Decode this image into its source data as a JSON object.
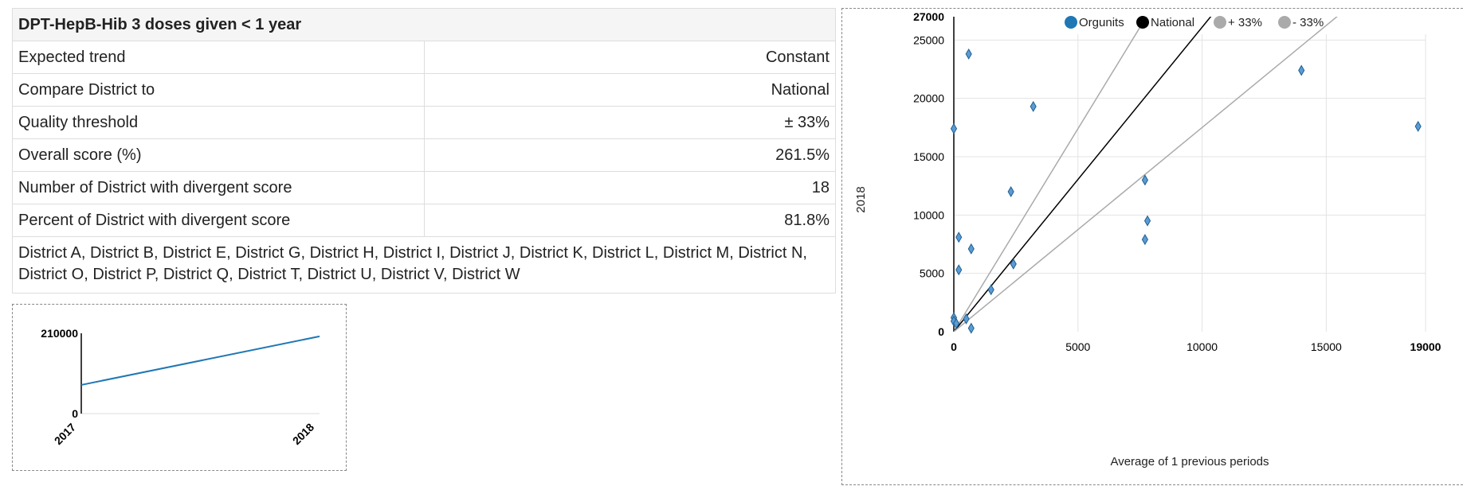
{
  "table": {
    "title": "DPT-HepB-Hib 3 doses given < 1 year",
    "rows": [
      {
        "label": "Expected trend",
        "value": "Constant"
      },
      {
        "label": "Compare District to",
        "value": "National"
      },
      {
        "label": "Quality threshold",
        "value": "± 33%"
      },
      {
        "label": "Overall score (%)",
        "value": "261.5%"
      },
      {
        "label": "Number of District with divergent score",
        "value": "18"
      },
      {
        "label": "Percent of District with divergent score",
        "value": "81.8%"
      }
    ],
    "divergent_list": "District A, District B, District E, District G, District H, District I, District J, District K, District L, District M, District N, District O, District P, District Q, District T, District U, District V, District W"
  },
  "chart_data": [
    {
      "type": "line",
      "x": [
        "2017",
        "2018"
      ],
      "series": [
        {
          "values": [
            75000,
            202000
          ]
        }
      ],
      "ylim": [
        0,
        210000
      ],
      "yticks": [
        "0",
        "210000"
      ],
      "colors": [
        "#1f77b4"
      ]
    },
    {
      "type": "scatter",
      "xlabel": "Average of 1 previous periods",
      "ylabel": "2018",
      "xlim": [
        0,
        19000
      ],
      "ylim": [
        0,
        27000
      ],
      "xticks": [
        "0",
        "5000",
        "10000",
        "15000",
        "19000"
      ],
      "yticks": [
        "0",
        "5000",
        "10000",
        "15000",
        "20000",
        "25000",
        "27000"
      ],
      "grid": true,
      "legend_position": "top",
      "legend": [
        {
          "name": "Orgunits",
          "color": "#1f77b4"
        },
        {
          "name": "National",
          "color": "#000000"
        },
        {
          "name": "+ 33%",
          "color": "#aaaaaa"
        },
        {
          "name": "- 33%",
          "color": "#aaaaaa"
        }
      ],
      "national_slope": 2.61,
      "upper_slope": 3.48,
      "lower_slope": 1.75,
      "points": [
        {
          "x": 0,
          "y": 17400
        },
        {
          "x": 600,
          "y": 23800
        },
        {
          "x": 3200,
          "y": 19300
        },
        {
          "x": 200,
          "y": 8100
        },
        {
          "x": 700,
          "y": 7100
        },
        {
          "x": 200,
          "y": 5300
        },
        {
          "x": 2300,
          "y": 12000
        },
        {
          "x": 2400,
          "y": 5800
        },
        {
          "x": 1500,
          "y": 3600
        },
        {
          "x": 7700,
          "y": 13000
        },
        {
          "x": 7800,
          "y": 9500
        },
        {
          "x": 7700,
          "y": 7900
        },
        {
          "x": 14000,
          "y": 22400
        },
        {
          "x": 18700,
          "y": 17600
        },
        {
          "x": 0,
          "y": 1200
        },
        {
          "x": 0,
          "y": 900
        },
        {
          "x": 100,
          "y": 700
        },
        {
          "x": 500,
          "y": 1100
        },
        {
          "x": 700,
          "y": 300
        }
      ]
    }
  ]
}
